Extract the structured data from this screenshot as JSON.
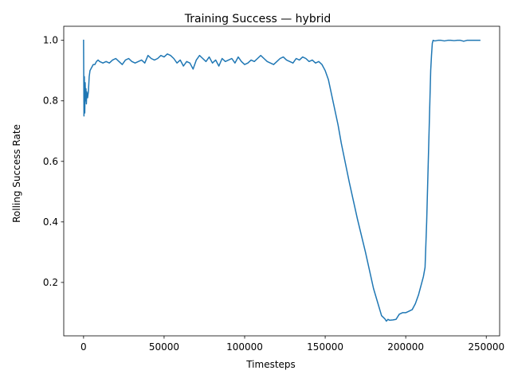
{
  "chart_data": {
    "type": "line",
    "title": "Training Success — hybrid",
    "xlabel": "Timesteps",
    "ylabel": "Rolling Success Rate",
    "xlim": [
      -12300,
      258300
    ],
    "ylim": [
      0.0235,
      1.0465
    ],
    "grid": false,
    "legend": "none",
    "xticks": [
      0,
      50000,
      100000,
      150000,
      200000,
      250000
    ],
    "xtick_labels": [
      "0",
      "50000",
      "100000",
      "150000",
      "200000",
      "250000"
    ],
    "yticks": [
      0.2,
      0.4,
      0.6,
      0.8,
      1.0
    ],
    "ytick_labels": [
      "0.2",
      "0.4",
      "0.6",
      "0.8",
      "1.0"
    ],
    "series": [
      {
        "color": "#1f77b4",
        "x": [
          0,
          250,
          500,
          750,
          1000,
          1250,
          1500,
          1750,
          2000,
          2500,
          3000,
          3500,
          4000,
          5000,
          6000,
          7000,
          8000,
          9000,
          10000,
          12000,
          14000,
          16000,
          18000,
          20000,
          22000,
          24000,
          26000,
          28000,
          30000,
          32000,
          34000,
          36000,
          38000,
          40000,
          42000,
          44000,
          46000,
          48000,
          50000,
          52000,
          54000,
          56000,
          58000,
          60000,
          62000,
          64000,
          66000,
          68000,
          70000,
          72000,
          74000,
          76000,
          78000,
          80000,
          82000,
          84000,
          86000,
          88000,
          90000,
          92000,
          94000,
          96000,
          98000,
          100000,
          102000,
          104000,
          106000,
          108000,
          110000,
          112000,
          114000,
          116000,
          118000,
          120000,
          122000,
          124000,
          126000,
          128000,
          130000,
          132000,
          134000,
          136000,
          138000,
          140000,
          142000,
          144000,
          146000,
          148000,
          150000,
          152000,
          154000,
          156000,
          158000,
          160000,
          165000,
          170000,
          175000,
          180000,
          185000,
          187000,
          188000,
          189000,
          190000,
          192000,
          194000,
          196000,
          198000,
          200000,
          202000,
          204000,
          206000,
          208000,
          210000,
          211000,
          212000,
          213000,
          214000,
          215000,
          215500,
          216000,
          216500,
          217000,
          218000,
          220000,
          222000,
          224000,
          226000,
          228000,
          230000,
          232000,
          234000,
          236000,
          238000,
          240000,
          242000,
          244000,
          246000
        ],
        "y": [
          1.0,
          0.75,
          0.88,
          0.76,
          0.86,
          0.8,
          0.84,
          0.79,
          0.83,
          0.81,
          0.83,
          0.88,
          0.9,
          0.91,
          0.92,
          0.92,
          0.93,
          0.935,
          0.93,
          0.925,
          0.93,
          0.925,
          0.935,
          0.94,
          0.93,
          0.92,
          0.935,
          0.94,
          0.93,
          0.925,
          0.93,
          0.935,
          0.925,
          0.95,
          0.94,
          0.935,
          0.94,
          0.95,
          0.945,
          0.955,
          0.95,
          0.94,
          0.925,
          0.935,
          0.915,
          0.93,
          0.925,
          0.905,
          0.935,
          0.95,
          0.94,
          0.93,
          0.945,
          0.925,
          0.935,
          0.915,
          0.94,
          0.93,
          0.935,
          0.94,
          0.925,
          0.945,
          0.93,
          0.92,
          0.925,
          0.935,
          0.93,
          0.94,
          0.95,
          0.94,
          0.93,
          0.925,
          0.92,
          0.93,
          0.94,
          0.945,
          0.935,
          0.93,
          0.925,
          0.94,
          0.935,
          0.945,
          0.94,
          0.93,
          0.935,
          0.925,
          0.93,
          0.92,
          0.9,
          0.87,
          0.82,
          0.77,
          0.72,
          0.66,
          0.53,
          0.41,
          0.3,
          0.18,
          0.09,
          0.08,
          0.072,
          0.078,
          0.075,
          0.076,
          0.078,
          0.095,
          0.1,
          0.1,
          0.105,
          0.11,
          0.13,
          0.16,
          0.2,
          0.22,
          0.25,
          0.4,
          0.6,
          0.8,
          0.9,
          0.95,
          0.99,
          1.0,
          0.998,
          1.0,
          1.0,
          0.998,
          1.0,
          1.0,
          0.999,
          1.0,
          1.0,
          0.997,
          1.0,
          1.0,
          1.0,
          1.0,
          1.0
        ]
      }
    ]
  }
}
